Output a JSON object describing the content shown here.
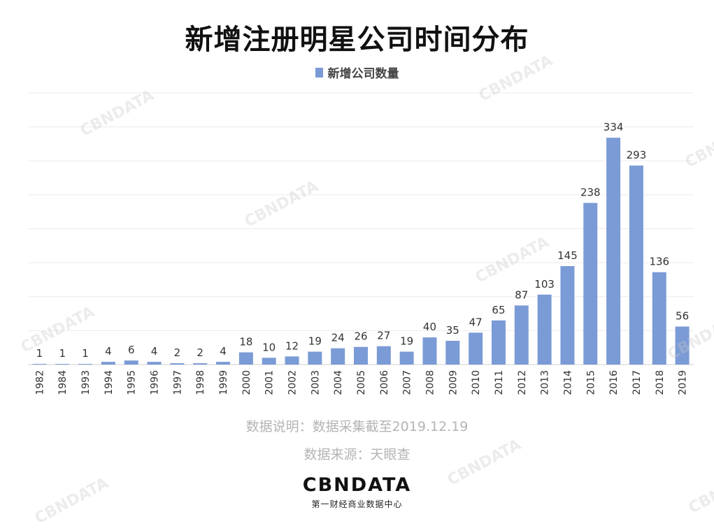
{
  "title": "新增注册明星公司时间分布",
  "legend": {
    "label": "新增公司数量",
    "color": "#7b9bd6"
  },
  "notes": {
    "line1": "数据说明：数据采集截至2019.12.19",
    "line2": "数据来源：天眼查"
  },
  "brand": {
    "logo": "CBNDATA",
    "sub": "第一财经商业数据中心"
  },
  "watermark_text": "CBNDATA",
  "chart_data": {
    "type": "bar",
    "title": "新增注册明星公司时间分布",
    "categories": [
      "1982",
      "1984",
      "1993",
      "1994",
      "1995",
      "1996",
      "1997",
      "1998",
      "1999",
      "2000",
      "2001",
      "2002",
      "2003",
      "2004",
      "2005",
      "2006",
      "2007",
      "2008",
      "2009",
      "2010",
      "2011",
      "2012",
      "2013",
      "2014",
      "2015",
      "2016",
      "2017",
      "2018",
      "2019"
    ],
    "series": [
      {
        "name": "新增公司数量",
        "values": [
          1,
          1,
          1,
          4,
          6,
          4,
          2,
          2,
          4,
          18,
          10,
          12,
          19,
          24,
          26,
          27,
          19,
          40,
          35,
          47,
          65,
          87,
          103,
          145,
          238,
          334,
          293,
          136,
          56
        ]
      }
    ],
    "ylim": [
      0,
      400
    ],
    "grid": true,
    "legend_position": "top-center",
    "bar_color": "#7b9bd6"
  }
}
